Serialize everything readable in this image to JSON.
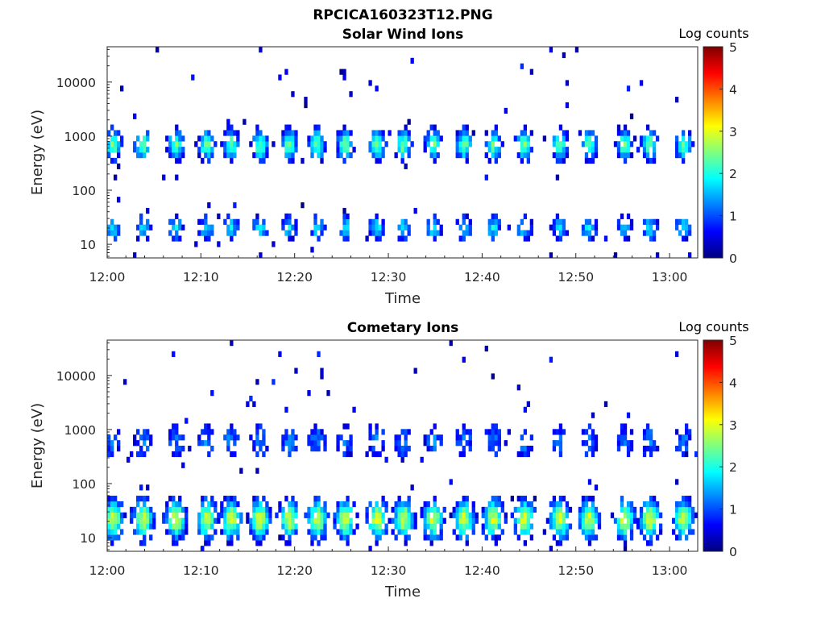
{
  "figure": {
    "title": "RPCICA160323T12.PNG"
  },
  "chart_data": [
    {
      "type": "heatmap",
      "title": "Solar Wind Ions",
      "xlabel": "Time",
      "ylabel": "Energy (eV)",
      "x_range_minutes": [
        0,
        63
      ],
      "x_ticks": [
        {
          "label": "12:00",
          "minute": 0
        },
        {
          "label": "12:10",
          "minute": 10
        },
        {
          "label": "12:20",
          "minute": 20
        },
        {
          "label": "12:30",
          "minute": 30
        },
        {
          "label": "12:40",
          "minute": 40
        },
        {
          "label": "12:50",
          "minute": 50
        },
        {
          "label": "13:00",
          "minute": 60
        }
      ],
      "y_scale": "log",
      "y_range": [
        5.6,
        45000
      ],
      "y_ticks": [
        {
          "label": "10",
          "value": 10
        },
        {
          "label": "100",
          "value": 100
        },
        {
          "label": "1000",
          "value": 1000
        },
        {
          "label": "10000",
          "value": 10000
        }
      ],
      "colorbar": {
        "title": "Log counts",
        "range": [
          0,
          5
        ],
        "ticks": [
          "0",
          "1",
          "2",
          "3",
          "4",
          "5"
        ],
        "colormap": "jet"
      },
      "bursts_minutes": [
        0.6,
        3.8,
        7.3,
        10.6,
        13.2,
        16.3,
        19.4,
        22.4,
        25.4,
        28.8,
        31.6,
        34.8,
        38.1,
        41.2,
        44.5,
        48.3,
        51.4,
        55.2,
        57.9,
        61.5
      ],
      "features": [
        {
          "energy_ev": 700,
          "peak_log_counts": 2.4,
          "description": "solar wind proton peak"
        },
        {
          "energy_ev": 20,
          "peak_log_counts": 1.8,
          "description": "low-energy band"
        }
      ]
    },
    {
      "type": "heatmap",
      "title": "Cometary Ions",
      "xlabel": "Time",
      "ylabel": "Energy (eV)",
      "x_range_minutes": [
        0,
        63
      ],
      "x_ticks": [
        {
          "label": "12:00",
          "minute": 0
        },
        {
          "label": "12:10",
          "minute": 10
        },
        {
          "label": "12:20",
          "minute": 20
        },
        {
          "label": "12:30",
          "minute": 30
        },
        {
          "label": "12:40",
          "minute": 40
        },
        {
          "label": "12:50",
          "minute": 50
        },
        {
          "label": "13:00",
          "minute": 60
        }
      ],
      "y_scale": "log",
      "y_range": [
        5.6,
        45000
      ],
      "y_ticks": [
        {
          "label": "10",
          "value": 10
        },
        {
          "label": "100",
          "value": 100
        },
        {
          "label": "1000",
          "value": 1000
        },
        {
          "label": "10000",
          "value": 10000
        }
      ],
      "colorbar": {
        "title": "Log counts",
        "range": [
          0,
          5
        ],
        "ticks": [
          "0",
          "1",
          "2",
          "3",
          "4",
          "5"
        ],
        "colormap": "jet"
      },
      "bursts_minutes": [
        0.6,
        3.8,
        7.3,
        10.6,
        13.2,
        16.3,
        19.4,
        22.4,
        25.4,
        28.8,
        31.6,
        34.8,
        38.1,
        41.2,
        44.5,
        48.3,
        51.4,
        55.2,
        57.9,
        61.5
      ],
      "features": [
        {
          "energy_ev": 22,
          "peak_log_counts": 2.9,
          "description": "cometary ion band"
        },
        {
          "energy_ev": 600,
          "peak_log_counts": 1.2,
          "description": "weak high-energy signal"
        }
      ]
    }
  ]
}
